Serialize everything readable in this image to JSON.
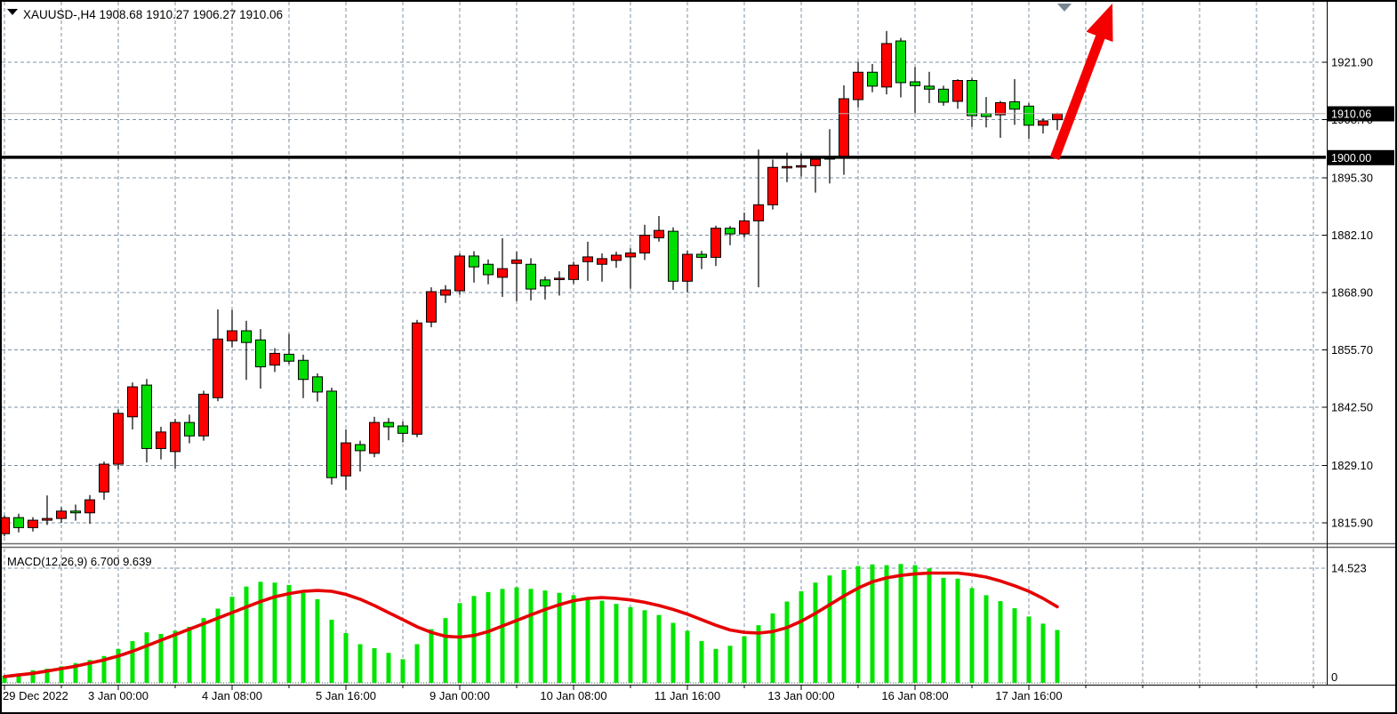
{
  "header": {
    "title": "XAUUSD-,H4  1908.68 1910.27 1906.27 1910.06"
  },
  "price_axis": {
    "labels": [
      "1921.90",
      "1908.70",
      "1895.30",
      "1882.10",
      "1868.90",
      "1855.70",
      "1842.50",
      "1829.10",
      "1815.90"
    ],
    "current_badge": "1910.06",
    "level_badge": "1900.00"
  },
  "time_axis": {
    "labels": [
      "29 Dec 2022",
      "3 Jan 00:00",
      "4 Jan 08:00",
      "5 Jan 16:00",
      "9 Jan 00:00",
      "10 Jan 08:00",
      "11 Jan 16:00",
      "13 Jan 00:00",
      "16 Jan 08:00",
      "17 Jan 16:00"
    ]
  },
  "macd_panel": {
    "label_full": "MACD(12,26,9) 6.700 9.639",
    "name": "MACD",
    "params": "12,26,9",
    "macd_value": "6.700",
    "signal_value": "9.639",
    "scale_max": "14.523",
    "scale_min": "0"
  },
  "chart_data": {
    "type": "candlestick",
    "symbol": "XAUUSD-",
    "timeframe": "H4",
    "title": "XAUUSD-,H4 1908.68 1910.27 1906.27 1910.06",
    "current_bar": {
      "open": 1908.68,
      "high": 1910.27,
      "low": 1906.27,
      "close": 1910.06
    },
    "price_gridlines": [
      1921.9,
      1908.7,
      1895.3,
      1882.1,
      1868.9,
      1855.7,
      1842.5,
      1829.1,
      1815.9
    ],
    "horizontal_level": 1900.0,
    "current_price": 1910.06,
    "time_labels": [
      "29 Dec 2022",
      "3 Jan 00:00",
      "4 Jan 08:00",
      "5 Jan 16:00",
      "9 Jan 00:00",
      "10 Jan 08:00",
      "11 Jan 16:00",
      "13 Jan 00:00",
      "16 Jan 08:00",
      "17 Jan 16:00"
    ],
    "bars_per_time_label": 8,
    "legend_note": "bull candles red, bear candles green",
    "colors": {
      "bull": "#ff0000",
      "bear": "#00dd00",
      "wick": "#000000",
      "grid": "#7d91a3",
      "macd_hist": "#00e400",
      "macd_signal": "#e60000",
      "level_line": "#000000",
      "current_price_line": "#b4b4b4",
      "arrow": "#f40000",
      "shift_marker": "#79858f"
    },
    "candles_ohlc": [
      [
        1813.4,
        1817.6,
        1812.8,
        1817.1
      ],
      [
        1817.1,
        1818.0,
        1813.7,
        1814.8
      ],
      [
        1814.8,
        1817.2,
        1813.9,
        1816.5
      ],
      [
        1816.5,
        1822.2,
        1815.4,
        1816.9
      ],
      [
        1816.9,
        1819.5,
        1815.9,
        1818.6
      ],
      [
        1818.6,
        1820.1,
        1816.4,
        1818.2
      ],
      [
        1818.2,
        1822.3,
        1815.7,
        1821.2
      ],
      [
        1823.0,
        1830.0,
        1821.2,
        1829.4
      ],
      [
        1829.4,
        1842.0,
        1828.2,
        1841.1
      ],
      [
        1840.3,
        1848.2,
        1837.4,
        1847.2
      ],
      [
        1847.6,
        1849.0,
        1829.8,
        1833.0
      ],
      [
        1833.0,
        1838.0,
        1830.5,
        1836.8
      ],
      [
        1832.3,
        1839.8,
        1828.4,
        1839.0
      ],
      [
        1839.0,
        1840.8,
        1834.2,
        1835.9
      ],
      [
        1835.9,
        1846.3,
        1834.8,
        1845.5
      ],
      [
        1844.7,
        1865.0,
        1843.9,
        1858.2
      ],
      [
        1857.8,
        1864.9,
        1856.3,
        1860.1
      ],
      [
        1860.1,
        1862.4,
        1848.8,
        1857.4
      ],
      [
        1858.0,
        1860.5,
        1846.8,
        1851.8
      ],
      [
        1852.2,
        1856.1,
        1850.6,
        1854.9
      ],
      [
        1854.7,
        1859.4,
        1852.4,
        1853.1
      ],
      [
        1853.3,
        1854.6,
        1844.6,
        1848.9
      ],
      [
        1849.5,
        1850.3,
        1843.8,
        1846.0
      ],
      [
        1846.2,
        1847.0,
        1824.7,
        1826.3
      ],
      [
        1826.7,
        1837.4,
        1823.5,
        1834.3
      ],
      [
        1833.9,
        1834.8,
        1827.7,
        1832.5
      ],
      [
        1831.9,
        1840.3,
        1831.0,
        1839.0
      ],
      [
        1839.0,
        1840.0,
        1834.9,
        1838.0
      ],
      [
        1838.2,
        1839.2,
        1834.4,
        1836.5
      ],
      [
        1836.3,
        1862.6,
        1835.6,
        1861.9
      ],
      [
        1862.1,
        1870.1,
        1860.9,
        1869.1
      ],
      [
        1868.3,
        1870.6,
        1866.5,
        1869.5
      ],
      [
        1869.3,
        1877.9,
        1868.4,
        1877.3
      ],
      [
        1877.3,
        1878.4,
        1871.2,
        1874.8
      ],
      [
        1875.4,
        1876.5,
        1870.8,
        1873.0
      ],
      [
        1872.4,
        1881.4,
        1867.9,
        1874.4
      ],
      [
        1875.6,
        1878.3,
        1866.9,
        1876.4
      ],
      [
        1875.4,
        1876.8,
        1867.1,
        1869.7
      ],
      [
        1871.8,
        1872.6,
        1867.3,
        1870.4
      ],
      [
        1871.9,
        1873.8,
        1868.2,
        1872.2
      ],
      [
        1871.9,
        1876.0,
        1870.9,
        1875.2
      ],
      [
        1876.0,
        1880.6,
        1871.6,
        1877.1
      ],
      [
        1875.4,
        1877.9,
        1871.4,
        1876.7
      ],
      [
        1876.3,
        1878.3,
        1874.6,
        1877.5
      ],
      [
        1877.1,
        1879.1,
        1869.8,
        1878.0
      ],
      [
        1878.0,
        1884.5,
        1876.4,
        1882.1
      ],
      [
        1881.5,
        1886.5,
        1880.6,
        1883.2
      ],
      [
        1883.0,
        1883.9,
        1869.5,
        1871.5
      ],
      [
        1871.5,
        1878.6,
        1869.0,
        1877.7
      ],
      [
        1877.7,
        1878.5,
        1874.3,
        1877.0
      ],
      [
        1877.0,
        1884.3,
        1875.0,
        1883.7
      ],
      [
        1883.7,
        1884.2,
        1879.8,
        1882.4
      ],
      [
        1882.4,
        1887.3,
        1881.5,
        1885.4
      ],
      [
        1885.4,
        1901.8,
        1870.1,
        1889.1
      ],
      [
        1889.1,
        1899.5,
        1888.0,
        1897.7
      ],
      [
        1897.7,
        1901.1,
        1894.3,
        1897.9
      ],
      [
        1897.9,
        1900.9,
        1895.6,
        1898.1
      ],
      [
        1898.1,
        1900.3,
        1891.9,
        1899.6
      ],
      [
        1899.6,
        1906.5,
        1894.0,
        1900.2
      ],
      [
        1900.2,
        1916.6,
        1896.0,
        1913.5
      ],
      [
        1913.3,
        1922.0,
        1911.5,
        1919.6
      ],
      [
        1919.6,
        1921.5,
        1915.0,
        1916.4
      ],
      [
        1916.2,
        1929.1,
        1914.5,
        1926.2
      ],
      [
        1926.8,
        1927.5,
        1913.8,
        1917.2
      ],
      [
        1917.4,
        1920.8,
        1910.2,
        1916.5
      ],
      [
        1916.4,
        1919.7,
        1912.5,
        1915.7
      ],
      [
        1915.7,
        1916.5,
        1911.9,
        1912.7
      ],
      [
        1912.9,
        1918.0,
        1911.2,
        1917.7
      ],
      [
        1917.7,
        1918.2,
        1907.0,
        1909.6
      ],
      [
        1910.1,
        1913.9,
        1906.9,
        1909.4
      ],
      [
        1909.8,
        1913.0,
        1904.5,
        1912.6
      ],
      [
        1912.8,
        1918.0,
        1907.5,
        1911.1
      ],
      [
        1911.8,
        1912.5,
        1904.3,
        1907.4
      ],
      [
        1907.4,
        1909.0,
        1905.5,
        1908.4
      ],
      [
        1908.68,
        1910.27,
        1906.27,
        1910.06
      ]
    ],
    "macd": {
      "type": "bar+line",
      "label": "MACD(12,26,9)",
      "current_macd": 6.7,
      "current_signal": 9.639,
      "scale_max": 14.523,
      "scale_min": 0,
      "histogram": [
        0.9,
        1.2,
        1.6,
        1.8,
        2.1,
        2.5,
        2.9,
        3.4,
        4.3,
        5.3,
        6.4,
        6.2,
        6.6,
        7.1,
        8.2,
        9.4,
        10.9,
        12.2,
        12.8,
        12.7,
        12.4,
        11.4,
        10.6,
        8.0,
        6.3,
        4.9,
        4.4,
        3.8,
        3.0,
        4.9,
        6.8,
        8.2,
        10.1,
        11.0,
        11.5,
        11.9,
        12.1,
        11.9,
        11.7,
        11.4,
        11.1,
        10.8,
        10.4,
        10.0,
        9.6,
        9.2,
        8.6,
        7.6,
        6.6,
        5.3,
        4.3,
        4.7,
        5.9,
        7.3,
        8.8,
        10.3,
        11.6,
        12.7,
        13.6,
        14.3,
        14.8,
        15.0,
        14.9,
        15.05,
        14.9,
        14.5,
        13.3,
        13.2,
        12.0,
        11.1,
        10.35,
        9.45,
        8.4,
        7.5,
        6.7
      ],
      "signal": [
        0.8,
        1.0,
        1.2,
        1.5,
        1.8,
        2.1,
        2.5,
        2.9,
        3.4,
        4.0,
        4.7,
        5.4,
        6.1,
        6.8,
        7.5,
        8.2,
        8.9,
        9.6,
        10.3,
        10.9,
        11.3,
        11.6,
        11.7,
        11.6,
        11.2,
        10.6,
        9.8,
        8.9,
        8.0,
        7.1,
        6.4,
        5.9,
        5.8,
        6.0,
        6.5,
        7.2,
        7.9,
        8.6,
        9.3,
        9.9,
        10.4,
        10.7,
        10.8,
        10.7,
        10.5,
        10.2,
        9.8,
        9.3,
        8.7,
        8.0,
        7.3,
        6.7,
        6.4,
        6.3,
        6.5,
        7.0,
        7.8,
        8.8,
        9.9,
        11.0,
        12.0,
        12.8,
        13.3,
        13.6,
        13.8,
        13.9,
        13.9,
        13.9,
        13.7,
        13.4,
        12.9,
        12.3,
        11.6,
        10.7,
        9.639
      ]
    },
    "annotations": [
      {
        "type": "arrow",
        "direction": "up",
        "color": "#f40000",
        "note": "bullish projection arrow at last candle"
      }
    ]
  }
}
